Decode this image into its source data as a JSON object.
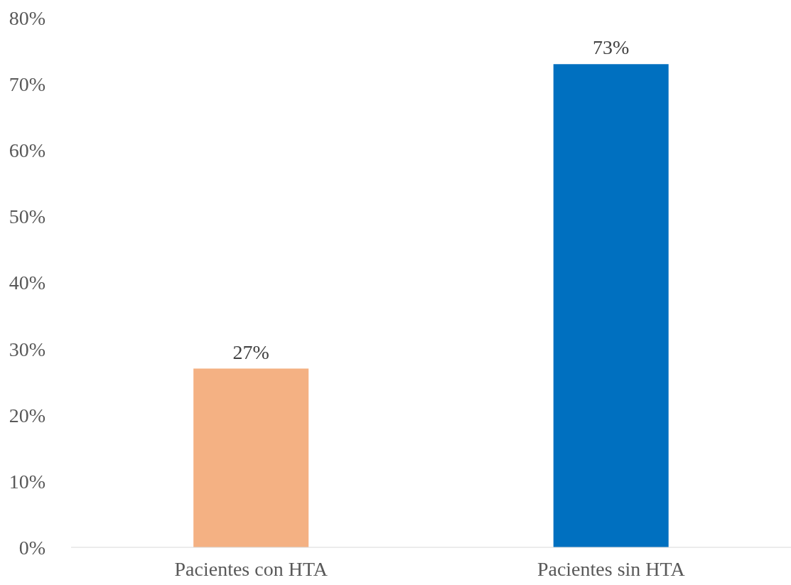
{
  "chart_data": {
    "type": "bar",
    "categories": [
      "Pacientes con HTA",
      "Pacientes sin HTA"
    ],
    "values": [
      27,
      73
    ],
    "colors": [
      "#f4b183",
      "#0070c0"
    ],
    "value_labels": [
      "27%",
      "73%"
    ],
    "ylim": [
      0,
      80
    ],
    "yticks": [
      {
        "value": 0,
        "label": "0%"
      },
      {
        "value": 10,
        "label": "10%"
      },
      {
        "value": 20,
        "label": "20%"
      },
      {
        "value": 30,
        "label": "30%"
      },
      {
        "value": 40,
        "label": "40%"
      },
      {
        "value": 50,
        "label": "50%"
      },
      {
        "value": 60,
        "label": "60%"
      },
      {
        "value": 70,
        "label": "70%"
      },
      {
        "value": 80,
        "label": "80%"
      }
    ]
  }
}
